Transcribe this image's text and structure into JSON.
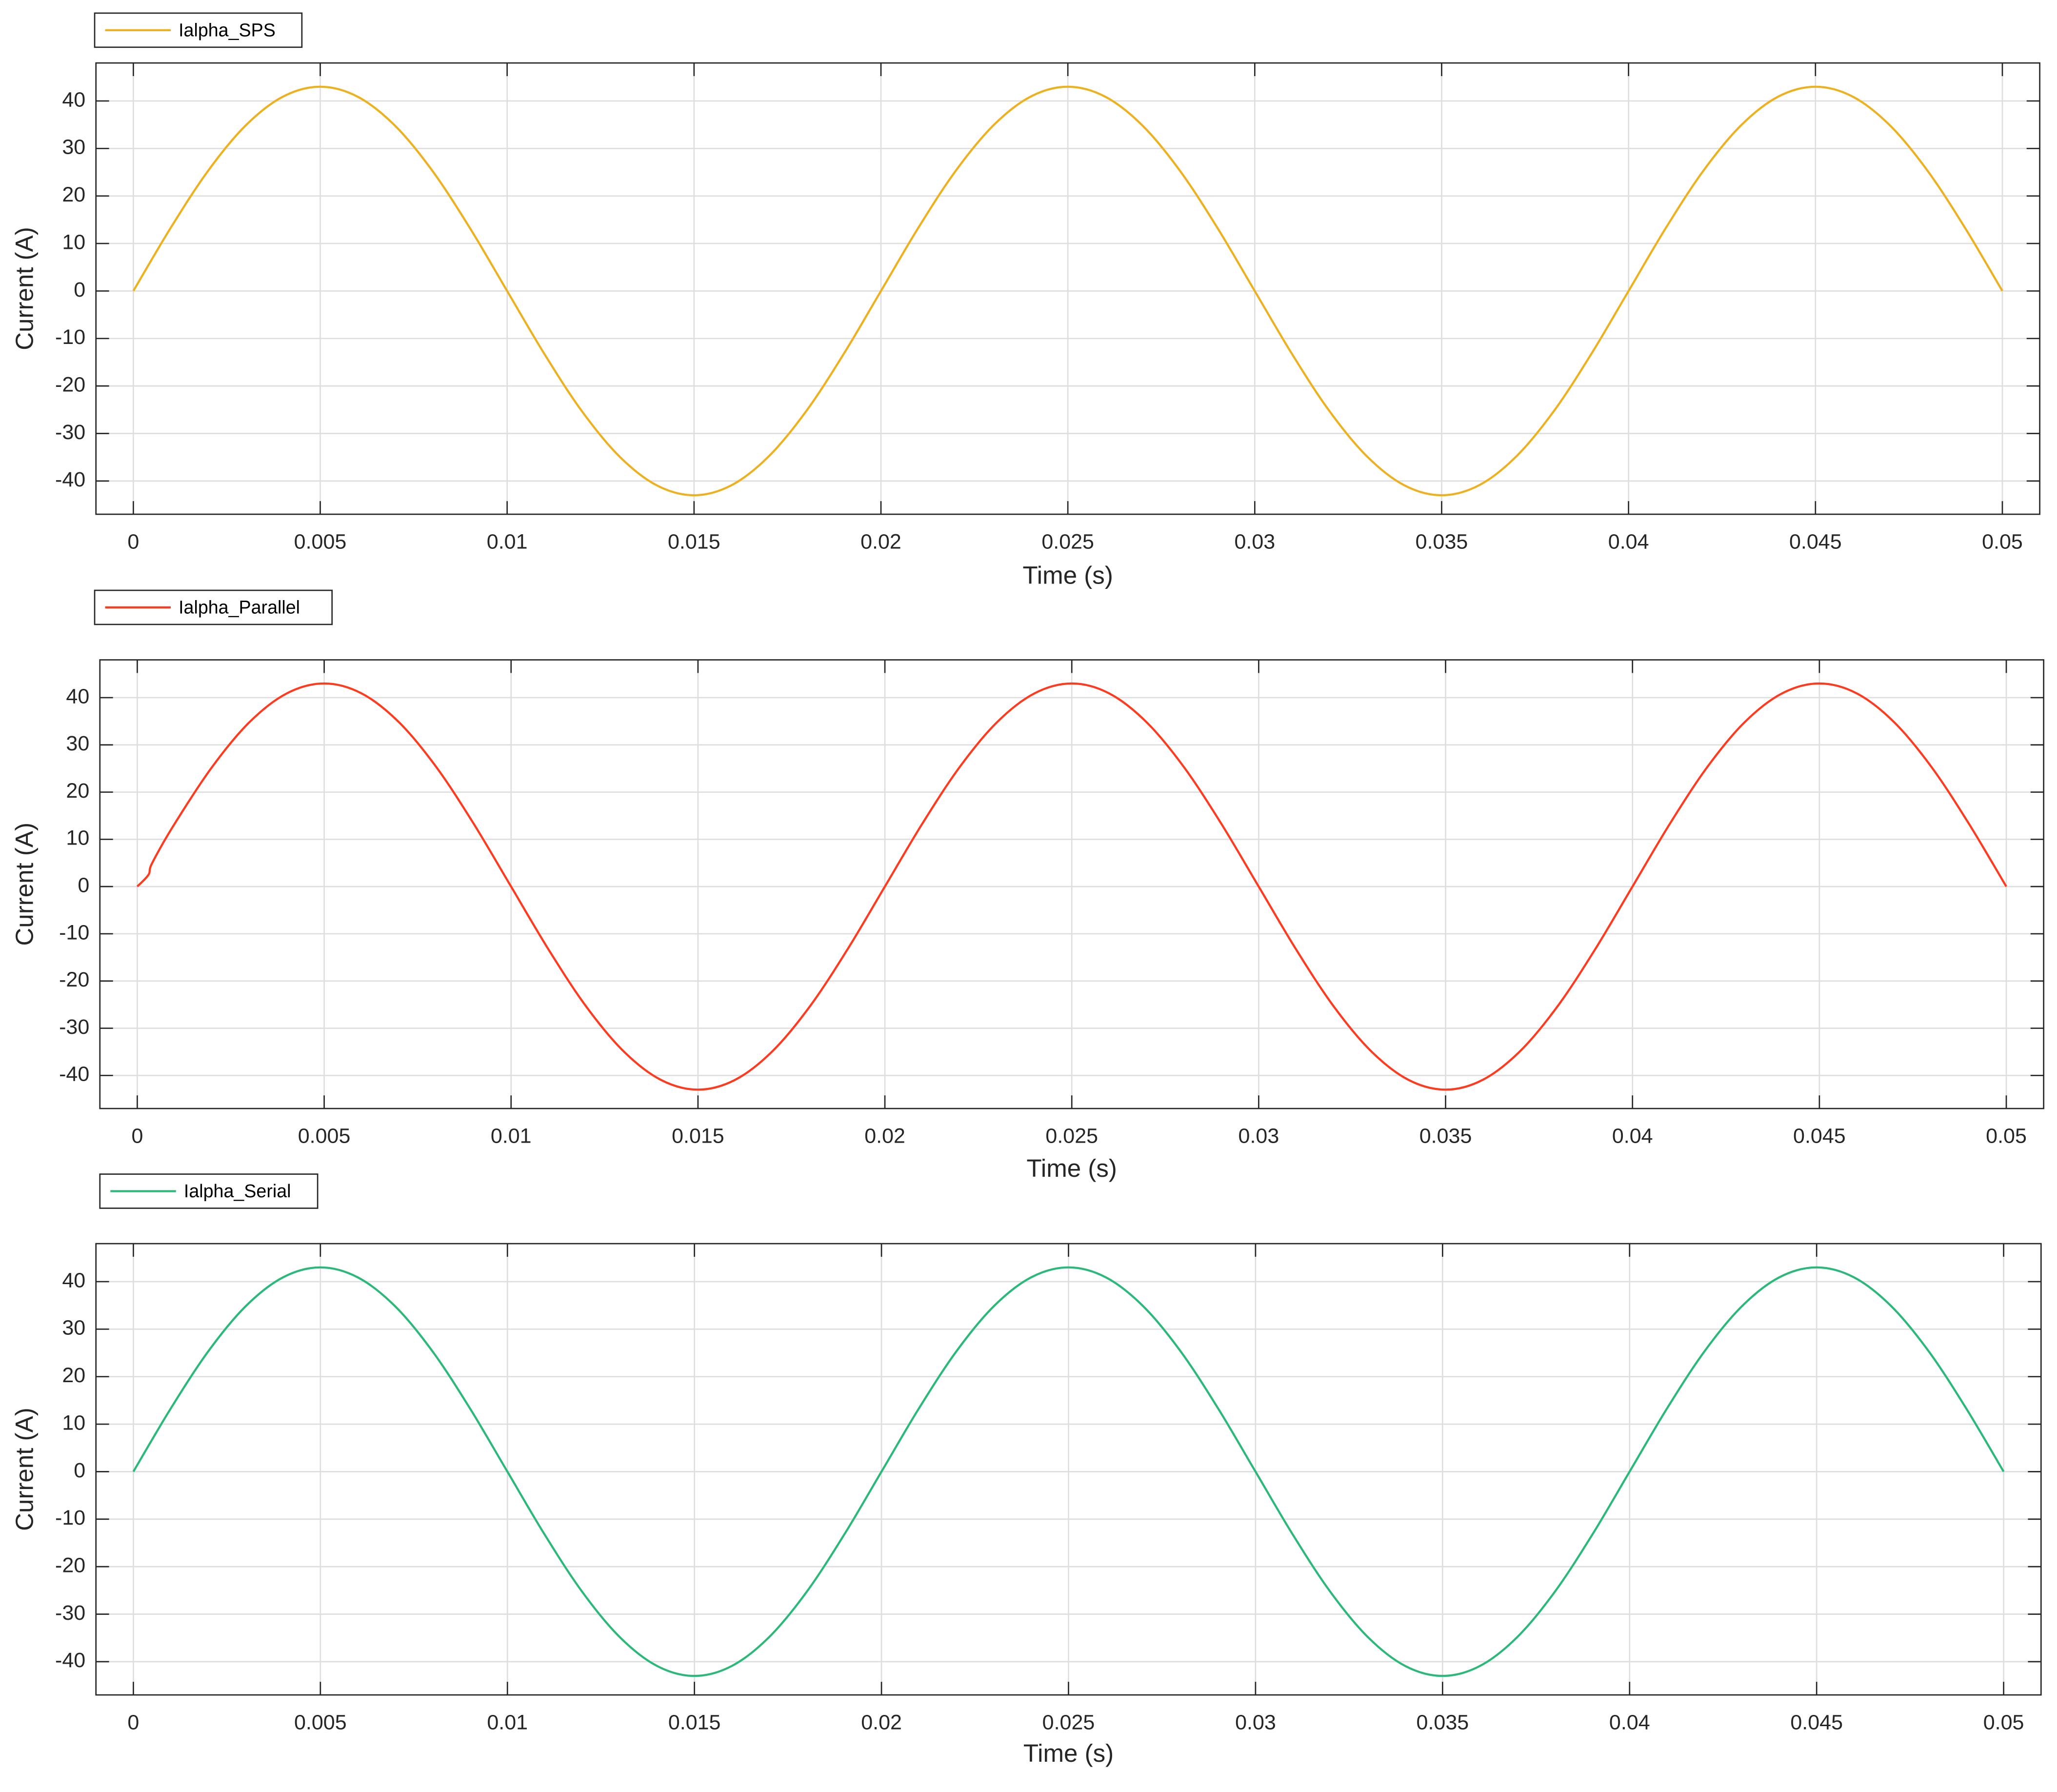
{
  "chart_data": [
    {
      "type": "line",
      "xlabel": "Time (s)",
      "ylabel": "Current (A)",
      "grid": true,
      "xlim": [
        -0.001,
        0.051
      ],
      "ylim": [
        -47,
        48
      ],
      "xticks": [
        0,
        0.005,
        0.01,
        0.015,
        0.02,
        0.025,
        0.03,
        0.035,
        0.04,
        0.045,
        0.05
      ],
      "yticks": [
        -40,
        -30,
        -20,
        -10,
        0,
        10,
        20,
        30,
        40
      ],
      "x": [
        0,
        0.001,
        0.002,
        0.003,
        0.004,
        0.005,
        0.006,
        0.007,
        0.008,
        0.009,
        0.01,
        0.011,
        0.012,
        0.013,
        0.014,
        0.015,
        0.016,
        0.017,
        0.018,
        0.019,
        0.02,
        0.021,
        0.022,
        0.023,
        0.024,
        0.025,
        0.026,
        0.027,
        0.028,
        0.029,
        0.03,
        0.031,
        0.032,
        0.033,
        0.034,
        0.035,
        0.036,
        0.037,
        0.038,
        0.039,
        0.04,
        0.041,
        0.042,
        0.043,
        0.044,
        0.045,
        0.046,
        0.047,
        0.048,
        0.049,
        0.05
      ],
      "series": [
        {
          "name": "Ialpha_SPS",
          "color": "#EDB120",
          "values": [
            0,
            13.3,
            25.3,
            34.8,
            40.9,
            43,
            40.9,
            34.8,
            25.3,
            13.3,
            0,
            -13.3,
            -25.3,
            -34.8,
            -40.9,
            -43,
            -40.9,
            -34.8,
            -25.3,
            -13.3,
            0,
            13.3,
            25.3,
            34.8,
            40.9,
            43,
            40.9,
            34.8,
            25.3,
            13.3,
            0,
            -13.3,
            -25.3,
            -34.8,
            -40.9,
            -43,
            -40.9,
            -34.8,
            -25.3,
            -13.3,
            0,
            13.3,
            25.3,
            34.8,
            40.9,
            43,
            40.9,
            34.8,
            25.3,
            13.3,
            0
          ]
        }
      ]
    },
    {
      "type": "line",
      "xlabel": "Time (s)",
      "ylabel": "Current (A)",
      "grid": true,
      "xlim": [
        -0.001,
        0.051
      ],
      "ylim": [
        -47,
        48
      ],
      "xticks": [
        0,
        0.005,
        0.01,
        0.015,
        0.02,
        0.025,
        0.03,
        0.035,
        0.04,
        0.045,
        0.05
      ],
      "yticks": [
        -40,
        -30,
        -20,
        -10,
        0,
        10,
        20,
        30,
        40
      ],
      "x": [
        0,
        0.0003,
        0.0004,
        0.001,
        0.002,
        0.003,
        0.004,
        0.005,
        0.006,
        0.007,
        0.008,
        0.009,
        0.01,
        0.011,
        0.012,
        0.013,
        0.014,
        0.015,
        0.016,
        0.017,
        0.018,
        0.019,
        0.02,
        0.021,
        0.022,
        0.023,
        0.024,
        0.025,
        0.026,
        0.027,
        0.028,
        0.029,
        0.03,
        0.031,
        0.032,
        0.033,
        0.034,
        0.035,
        0.036,
        0.037,
        0.038,
        0.039,
        0.04,
        0.041,
        0.042,
        0.043,
        0.044,
        0.045,
        0.046,
        0.047,
        0.048,
        0.049,
        0.05
      ],
      "series": [
        {
          "name": "Ialpha_Parallel",
          "color": "#FF3A1F",
          "values": [
            0,
            2.5,
            5,
            13.3,
            25.3,
            34.8,
            40.9,
            43,
            40.9,
            34.8,
            25.3,
            13.3,
            0,
            -13.3,
            -25.3,
            -34.8,
            -40.9,
            -43,
            -40.9,
            -34.8,
            -25.3,
            -13.3,
            0,
            13.3,
            25.3,
            34.8,
            40.9,
            43,
            40.9,
            34.8,
            25.3,
            13.3,
            0,
            -13.3,
            -25.3,
            -34.8,
            -40.9,
            -43,
            -40.9,
            -34.8,
            -25.3,
            -13.3,
            0,
            13.3,
            25.3,
            34.8,
            40.9,
            43,
            40.9,
            34.8,
            25.3,
            13.3,
            0
          ]
        }
      ]
    },
    {
      "type": "line",
      "xlabel": "Time (s)",
      "ylabel": "Current (A)",
      "grid": true,
      "xlim": [
        -0.001,
        0.051
      ],
      "ylim": [
        -47,
        48
      ],
      "xticks": [
        0,
        0.005,
        0.01,
        0.015,
        0.02,
        0.025,
        0.03,
        0.035,
        0.04,
        0.045,
        0.05
      ],
      "yticks": [
        -40,
        -30,
        -20,
        -10,
        0,
        10,
        20,
        30,
        40
      ],
      "x": [
        0,
        0.001,
        0.002,
        0.003,
        0.004,
        0.005,
        0.006,
        0.007,
        0.008,
        0.009,
        0.01,
        0.011,
        0.012,
        0.013,
        0.014,
        0.015,
        0.016,
        0.017,
        0.018,
        0.019,
        0.02,
        0.021,
        0.022,
        0.023,
        0.024,
        0.025,
        0.026,
        0.027,
        0.028,
        0.029,
        0.03,
        0.031,
        0.032,
        0.033,
        0.034,
        0.035,
        0.036,
        0.037,
        0.038,
        0.039,
        0.04,
        0.041,
        0.042,
        0.043,
        0.044,
        0.045,
        0.046,
        0.047,
        0.048,
        0.049,
        0.05
      ],
      "series": [
        {
          "name": "Ialpha_Serial",
          "color": "#2DB87B",
          "values": [
            0,
            13.3,
            25.3,
            34.8,
            40.9,
            43,
            40.9,
            34.8,
            25.3,
            13.3,
            0,
            -13.3,
            -25.3,
            -34.8,
            -40.9,
            -43,
            -40.9,
            -34.8,
            -25.3,
            -13.3,
            0,
            13.3,
            25.3,
            34.8,
            40.9,
            43,
            40.9,
            34.8,
            25.3,
            13.3,
            0,
            -13.3,
            -25.3,
            -34.8,
            -40.9,
            -43,
            -40.9,
            -34.8,
            -25.3,
            -13.3,
            0,
            13.3,
            25.3,
            34.8,
            40.9,
            43,
            40.9,
            34.8,
            25.3,
            13.3,
            0
          ]
        }
      ]
    }
  ]
}
